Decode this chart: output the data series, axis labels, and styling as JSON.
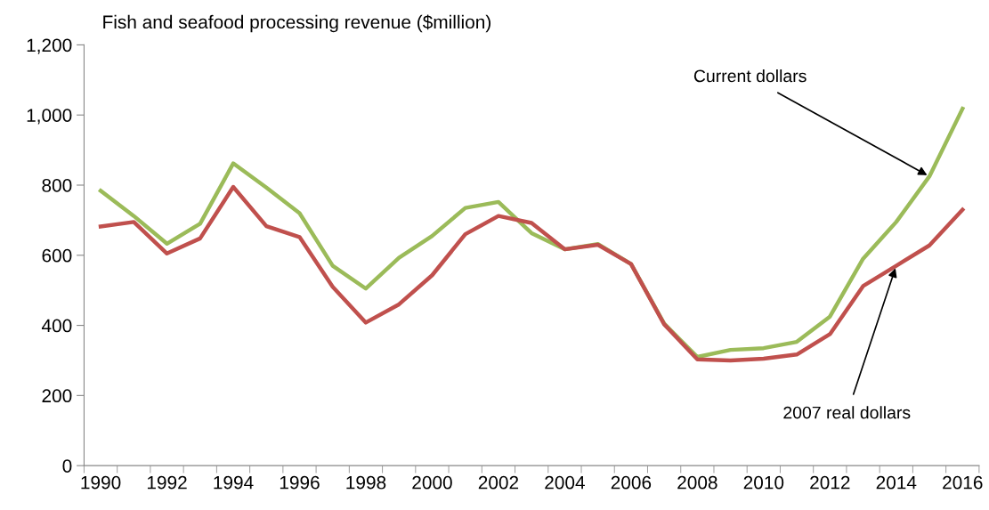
{
  "chart_data": {
    "type": "line",
    "title": "Fish and seafood processing revenue ($million)",
    "categories": [
      "1990",
      null,
      "1992",
      null,
      "1994",
      null,
      "1996",
      null,
      "1998",
      null,
      "2000",
      null,
      "2002",
      null,
      "2004",
      null,
      "2006",
      null,
      "2008",
      null,
      "2010",
      null,
      "2012",
      null,
      "2014",
      null,
      "2016"
    ],
    "series": [
      {
        "name": "Current dollars",
        "color": "#9bbb59",
        "values": [
          784,
          712,
          633,
          690,
          862,
          793,
          720,
          570,
          505,
          593,
          655,
          735,
          752,
          663,
          617,
          632,
          575,
          405,
          310,
          330,
          335,
          353,
          425,
          590,
          695,
          825,
          1018
        ]
      },
      {
        "name": "2007 real dollars",
        "color": "#c0504d",
        "values": [
          682,
          695,
          605,
          648,
          795,
          683,
          652,
          510,
          408,
          460,
          543,
          660,
          712,
          692,
          617,
          630,
          575,
          403,
          303,
          300,
          305,
          317,
          375,
          512,
          570,
          628,
          730
        ]
      }
    ],
    "ylim": [
      0,
      1200
    ],
    "yticks": [
      0,
      200,
      400,
      600,
      800,
      {
        "value": 1000,
        "label": "1,000"
      },
      {
        "value": 1200,
        "label": "1,200"
      }
    ],
    "grid": false,
    "legend": false,
    "marker": "none",
    "line_style": "solid"
  }
}
